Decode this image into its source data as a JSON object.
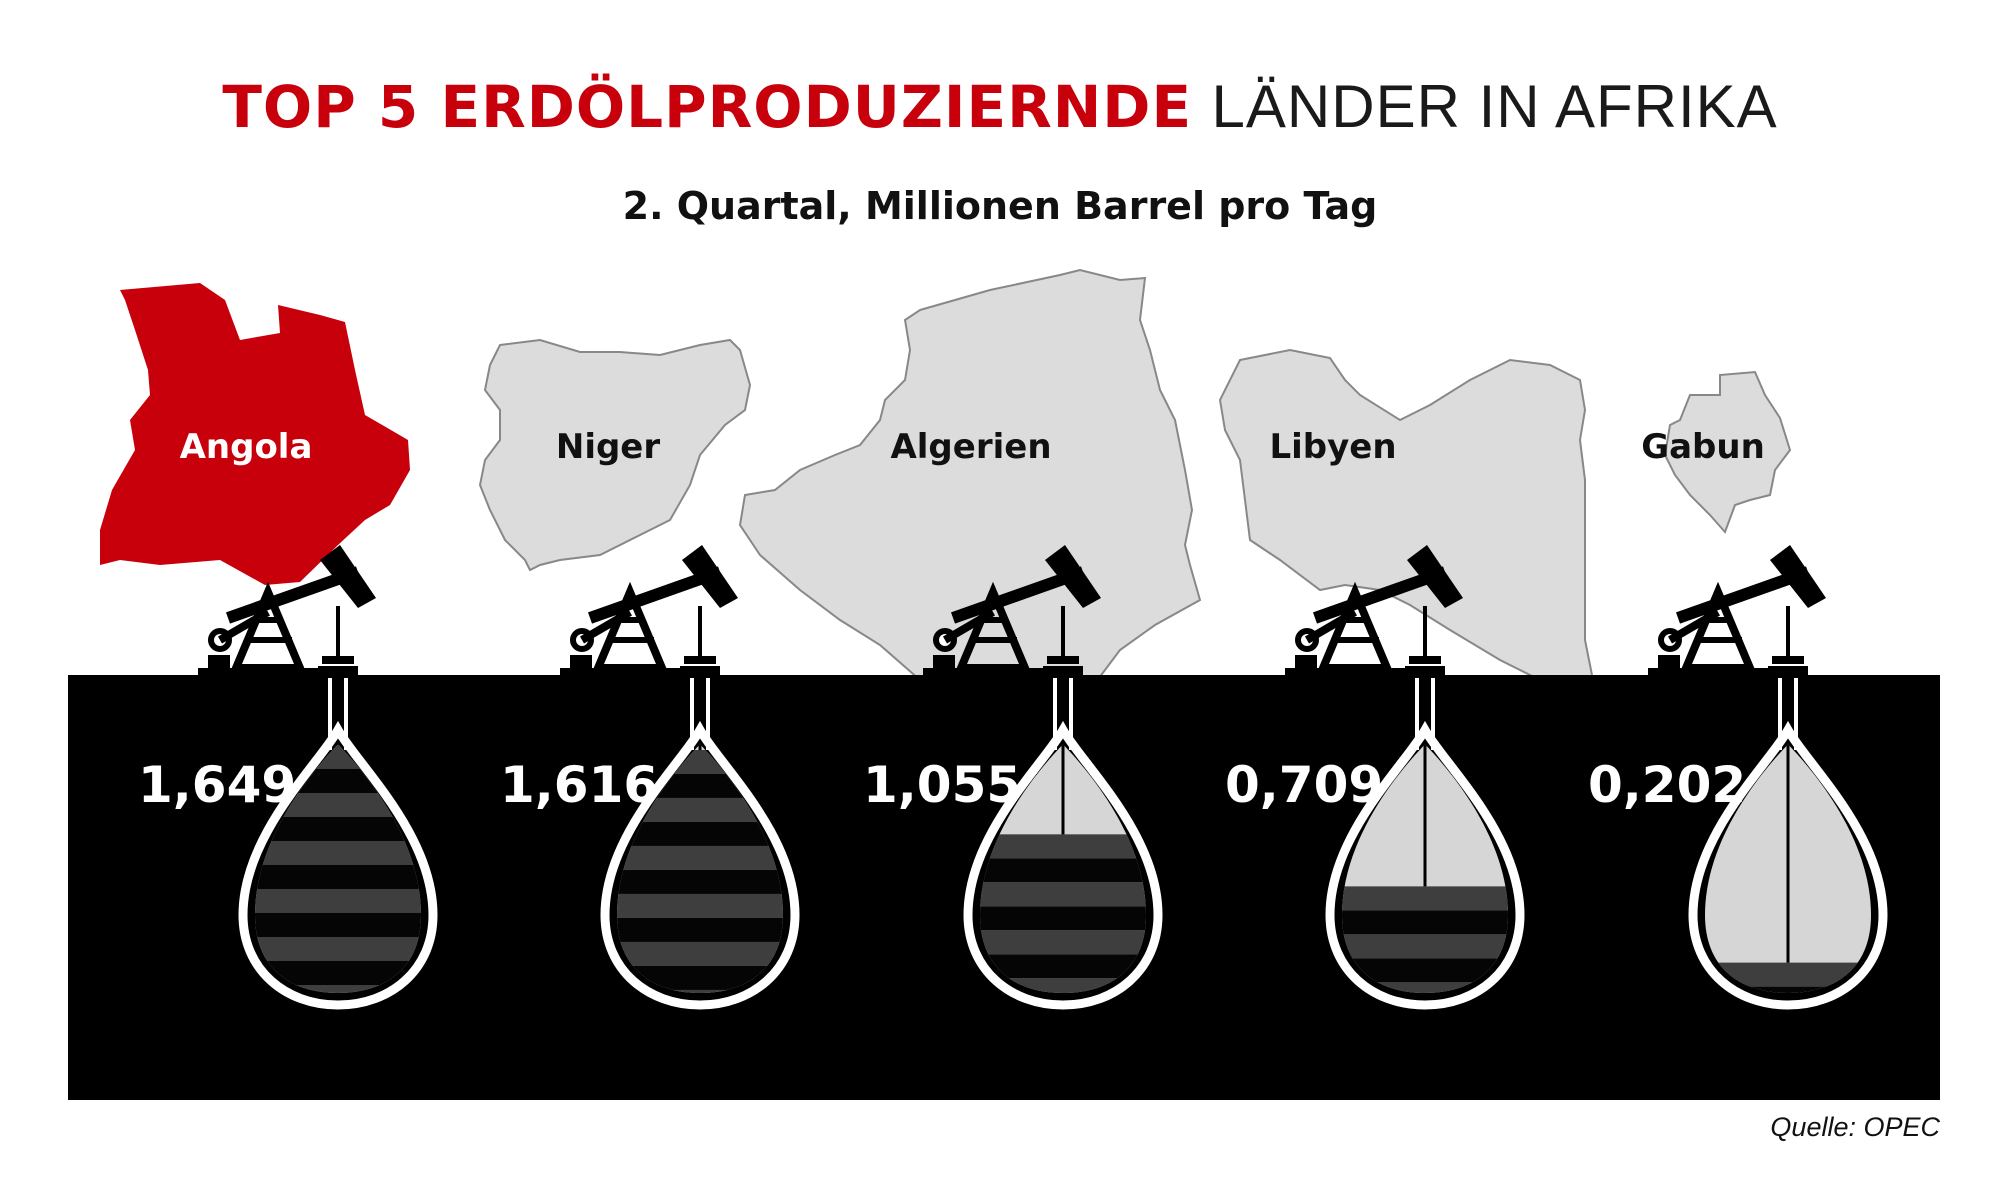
{
  "title": {
    "highlight": "TOP 5 ERDÖLPRODUZIERNDE",
    "rest": "LÄNDER IN AFRIKA"
  },
  "subtitle": "2. Quartal, Millionen Barrel pro Tag",
  "source": "Quelle: OPEC",
  "colors": {
    "accent": "#c8000b",
    "ground": "#000000",
    "land": "#dcdcdc",
    "oil": "#3e3e3e",
    "empty": "#d6d6d6"
  },
  "chart_data": {
    "type": "bar",
    "title": "TOP 5 ERDÖLPRODUZIERNDE LÄNDER IN AFRIKA",
    "subtitle": "2. Quartal, Millionen Barrel pro Tag",
    "categories": [
      "Angola",
      "Niger",
      "Algerien",
      "Libyen",
      "Gabun"
    ],
    "values": [
      1.649,
      1.616,
      1.055,
      0.709,
      0.202
    ],
    "value_labels": [
      "1,649",
      "1,616",
      "1,055",
      "0,709",
      "0,202"
    ],
    "ylim": [
      0,
      1.649
    ],
    "highlight": "Angola"
  }
}
